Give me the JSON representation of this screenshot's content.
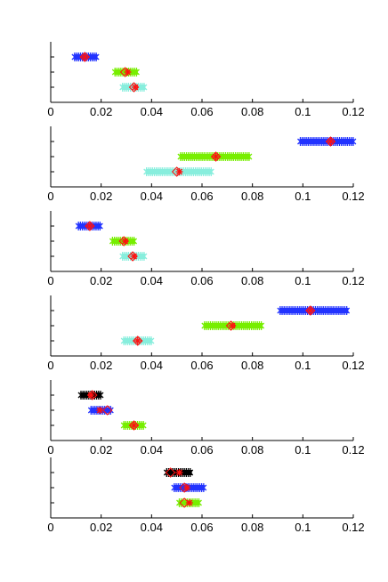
{
  "chart_data": [
    {
      "type": "scatter",
      "title": "",
      "xlabel": "",
      "ylabel": "",
      "xlim": [
        0,
        0.12
      ],
      "xticks": [
        "0",
        "0.02",
        "0.04",
        "0.06",
        "0.08",
        "0.1",
        "0.12"
      ],
      "series": [
        {
          "color": "#2233ff",
          "row": 1,
          "x_range": [
            0.0095,
            0.0185
          ],
          "mean": 0.0135,
          "median": 0.0135
        },
        {
          "color": "#77ee00",
          "row": 2,
          "x_range": [
            0.0255,
            0.0345
          ],
          "mean": 0.0305,
          "median": 0.0295
        },
        {
          "color": "#88eedd",
          "row": 3,
          "x_range": [
            0.0285,
            0.0375
          ],
          "mean": 0.0335,
          "median": 0.033
        }
      ]
    },
    {
      "type": "scatter",
      "title": "",
      "xlabel": "",
      "ylabel": "",
      "xlim": [
        0,
        0.12
      ],
      "xticks": [
        "0",
        "0.02",
        "0.04",
        "0.06",
        "0.08",
        "0.1",
        "0.12"
      ],
      "series": [
        {
          "color": "#2233ff",
          "row": 1,
          "x_range": [
            0.099,
            0.12
          ],
          "mean": 0.111,
          "median": 0.111
        },
        {
          "color": "#77ee00",
          "row": 2,
          "x_range": [
            0.0515,
            0.079
          ],
          "mean": 0.0655,
          "median": 0.0655
        },
        {
          "color": "#88eedd",
          "row": 3,
          "x_range": [
            0.038,
            0.064
          ],
          "mean": 0.051,
          "median": 0.05
        }
      ]
    },
    {
      "type": "scatter",
      "title": "",
      "xlabel": "",
      "ylabel": "",
      "xlim": [
        0,
        0.12
      ],
      "xticks": [
        "0",
        "0.02",
        "0.04",
        "0.06",
        "0.08",
        "0.1",
        "0.12"
      ],
      "series": [
        {
          "color": "#2233ff",
          "row": 1,
          "x_range": [
            0.011,
            0.02
          ],
          "mean": 0.0155,
          "median": 0.0155
        },
        {
          "color": "#77ee00",
          "row": 2,
          "x_range": [
            0.0245,
            0.0335
          ],
          "mean": 0.0295,
          "median": 0.029
        },
        {
          "color": "#88eedd",
          "row": 3,
          "x_range": [
            0.0285,
            0.0375
          ],
          "mean": 0.033,
          "median": 0.0325
        }
      ]
    },
    {
      "type": "scatter",
      "title": "",
      "xlabel": "",
      "ylabel": "",
      "xlim": [
        0,
        0.12
      ],
      "xticks": [
        "0",
        "0.02",
        "0.04",
        "0.06",
        "0.08",
        "0.1",
        "0.12"
      ],
      "series": [
        {
          "color": "#2233ff",
          "row": 1,
          "x_range": [
            0.091,
            0.118
          ],
          "mean": 0.103,
          "median": 0.103
        },
        {
          "color": "#77ee00",
          "row": 2,
          "x_range": [
            0.061,
            0.084
          ],
          "mean": 0.072,
          "median": 0.0715
        },
        {
          "color": "#88eedd",
          "row": 3,
          "x_range": [
            0.029,
            0.04
          ],
          "mean": 0.0345,
          "median": 0.0345
        }
      ]
    },
    {
      "type": "scatter",
      "title": "",
      "xlabel": "",
      "ylabel": "",
      "xlim": [
        0,
        0.12
      ],
      "xticks": [
        "0",
        "0.02",
        "0.04",
        "0.06",
        "0.08",
        "0.1",
        "0.12"
      ],
      "series": [
        {
          "color": "#000000",
          "row": 1,
          "x_range": [
            0.012,
            0.02
          ],
          "mean": 0.016,
          "median": 0.0165
        },
        {
          "color": "#2233ff",
          "row": 2,
          "x_range": [
            0.016,
            0.024
          ],
          "mean": 0.0195,
          "median": 0.0225
        },
        {
          "color": "#77ee00",
          "row": 3,
          "x_range": [
            0.029,
            0.037
          ],
          "mean": 0.033,
          "median": 0.033
        }
      ]
    },
    {
      "type": "scatter",
      "title": "",
      "xlabel": "",
      "ylabel": "",
      "xlim": [
        0,
        0.12
      ],
      "xticks": [
        "0",
        "0.02",
        "0.04",
        "0.06",
        "0.08",
        "0.1",
        "0.12"
      ],
      "series": [
        {
          "color": "#000000",
          "row": 1,
          "x_range": [
            0.046,
            0.056
          ],
          "mean": 0.051,
          "median": 0.0475
        },
        {
          "color": "#2233ff",
          "row": 2,
          "x_range": [
            0.049,
            0.061
          ],
          "mean": 0.054,
          "median": 0.053
        },
        {
          "color": "#77ee00",
          "row": 3,
          "x_range": [
            0.051,
            0.059
          ],
          "mean": 0.055,
          "median": 0.053
        }
      ]
    }
  ]
}
